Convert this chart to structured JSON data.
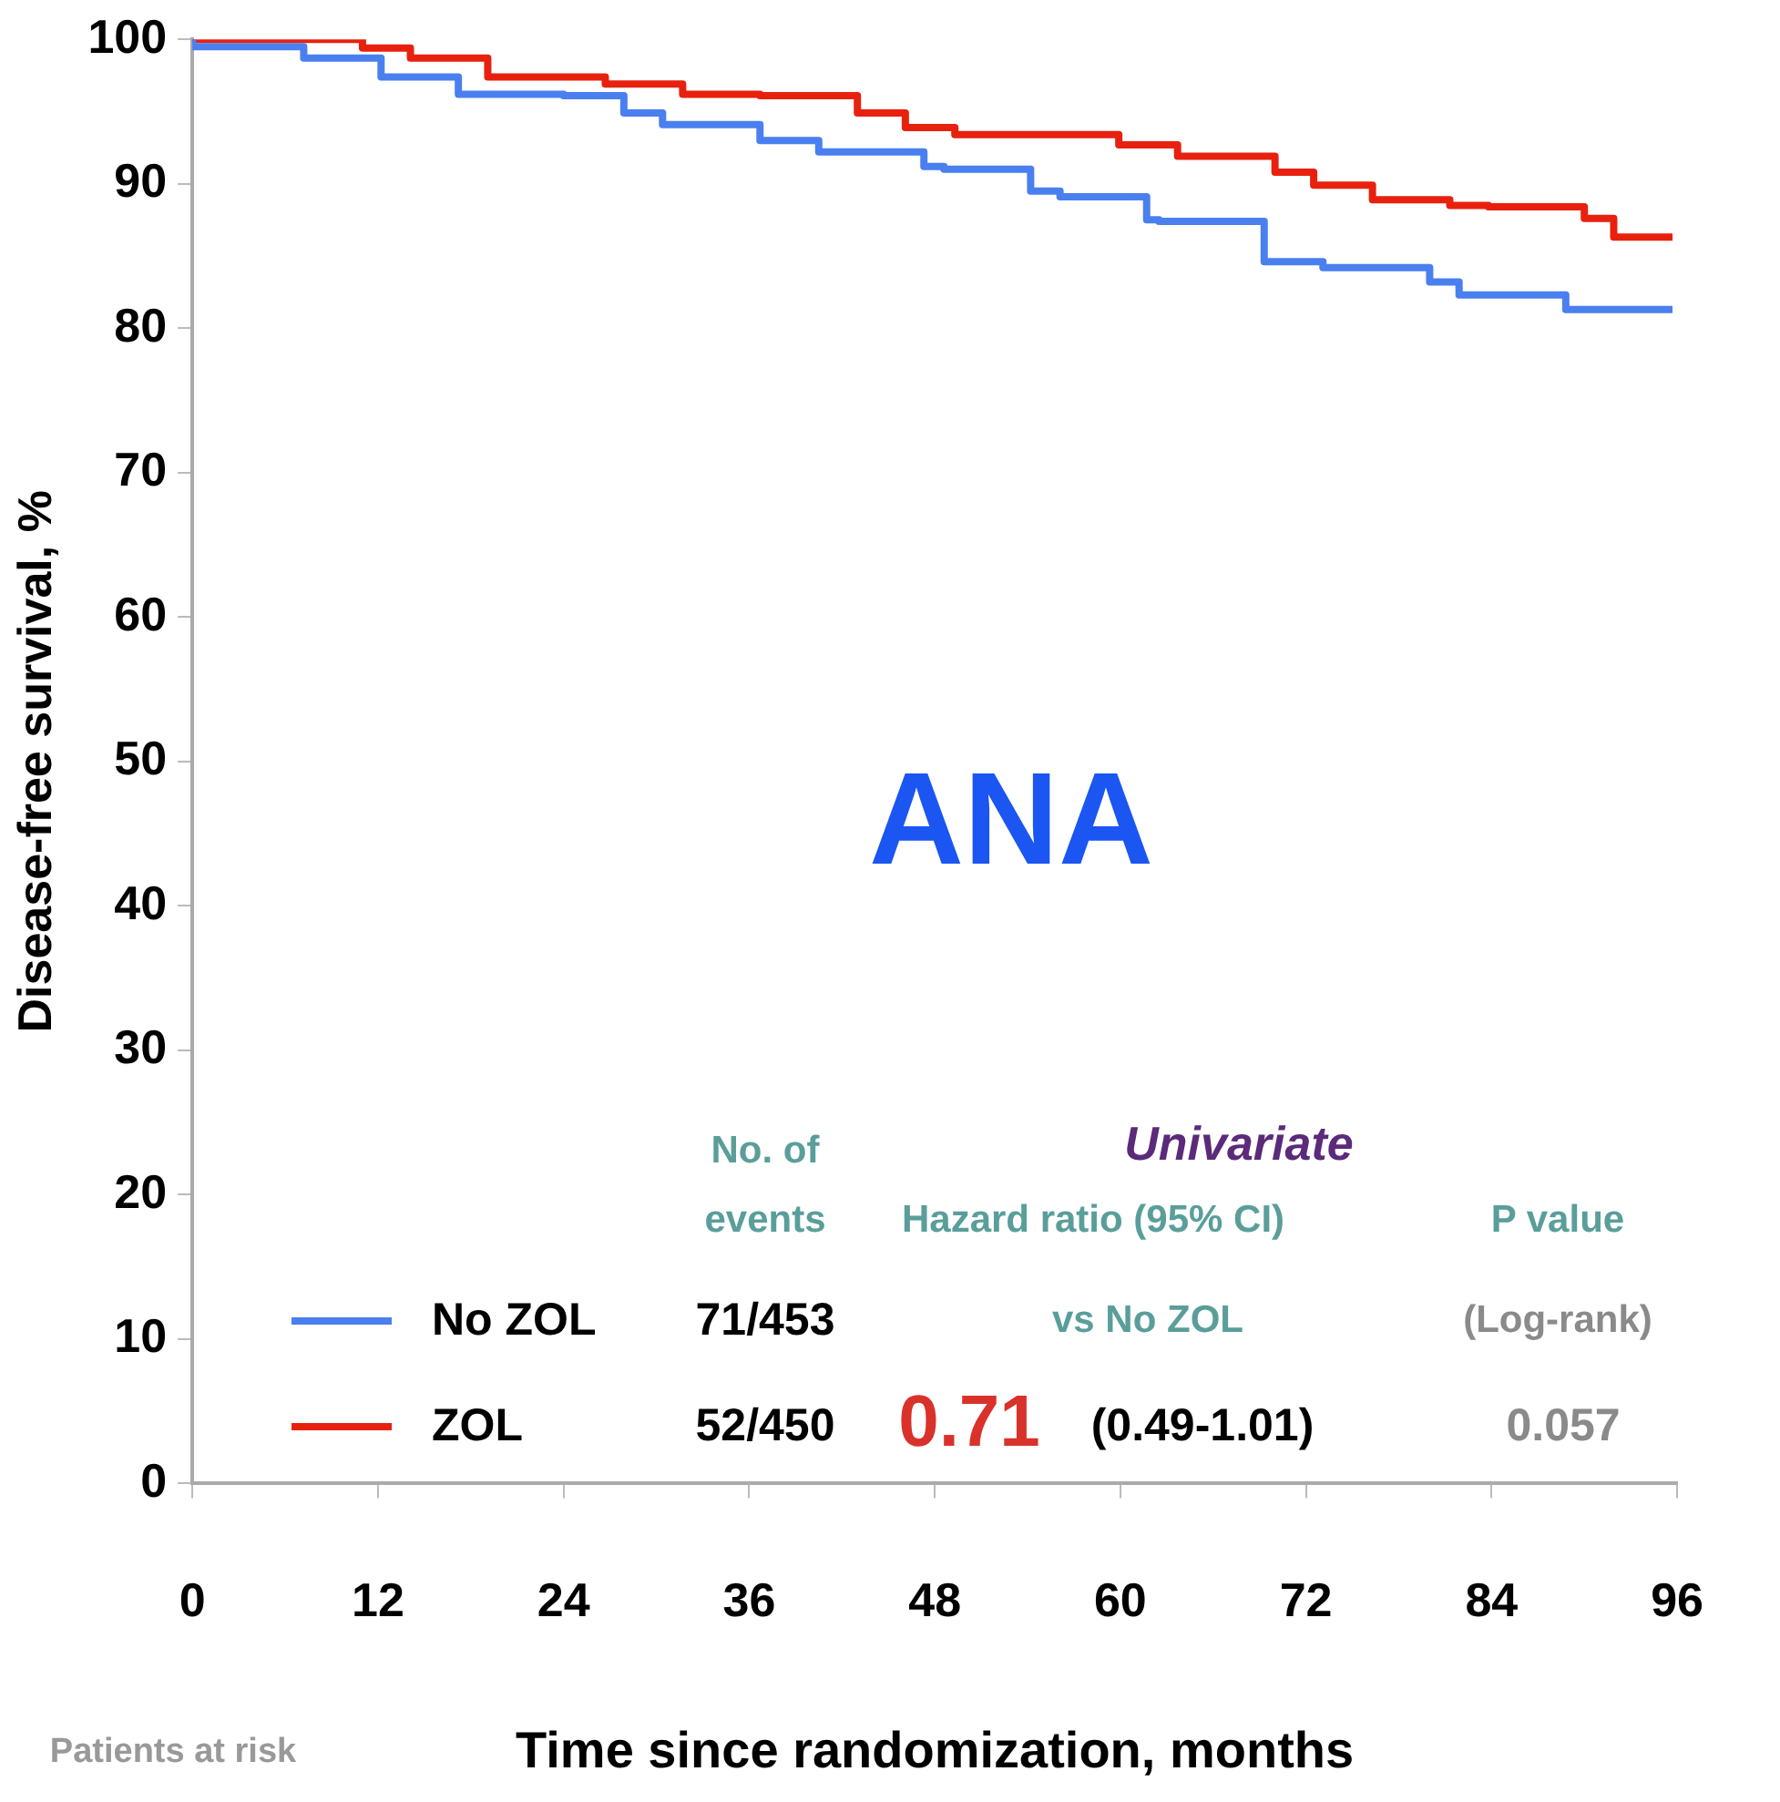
{
  "chart_data": {
    "type": "step",
    "title": "ANA",
    "xlabel": "Time since randomization, months",
    "ylabel": "Disease-free survival, %",
    "xlim": [
      0,
      96
    ],
    "xticks": [
      0,
      12,
      24,
      36,
      48,
      60,
      72,
      84,
      96
    ],
    "ylim": [
      0,
      100
    ],
    "yticks": [
      0,
      10,
      20,
      30,
      40,
      50,
      60,
      70,
      80,
      90,
      100
    ],
    "grid": false,
    "legend": "bottom left",
    "series": [
      {
        "name": "No ZOL",
        "color": "#4a7ff0",
        "x": [
          0,
          7.2,
          12.2,
          17.2,
          24,
          27.9,
          30.4,
          36.7,
          40.5,
          47.3,
          48.6,
          54.2,
          56.1,
          61.7,
          62.5,
          69.3,
          73.1,
          80,
          81.9,
          88.8,
          91.6,
          95.7
        ],
        "values": [
          100,
          99.5,
          98.7,
          97.4,
          96.2,
          96.1,
          94.9,
          94.1,
          93.0,
          92.2,
          91.2,
          91.0,
          89.5,
          89.1,
          87.5,
          87.4,
          84.6,
          84.2,
          83.2,
          82.3,
          81.3,
          81.3
        ]
      },
      {
        "name": "ZOL",
        "color": "#e8210f",
        "x": [
          0,
          11,
          14.1,
          19.1,
          26.7,
          31.7,
          36.7,
          43,
          46.1,
          49.3,
          59.9,
          63.7,
          70,
          72.5,
          76.3,
          81.3,
          83.8,
          90,
          91.9,
          95.7
        ],
        "values": [
          100,
          100,
          99.4,
          98.7,
          97.4,
          96.9,
          96.2,
          96.1,
          94.9,
          93.9,
          93.4,
          92.7,
          91.9,
          90.8,
          89.9,
          88.9,
          88.5,
          88.4,
          87.6,
          86.3
        ]
      }
    ],
    "annotations": [
      "No. of",
      "events",
      "Univariate",
      "Hazard ratio (95% CI)",
      "P value",
      "71/453",
      "vs No ZOL",
      "(Log-rank)",
      "52/450",
      "0.71",
      "(0.49-1.01)",
      "0.057",
      "Patients at risk"
    ]
  }
}
